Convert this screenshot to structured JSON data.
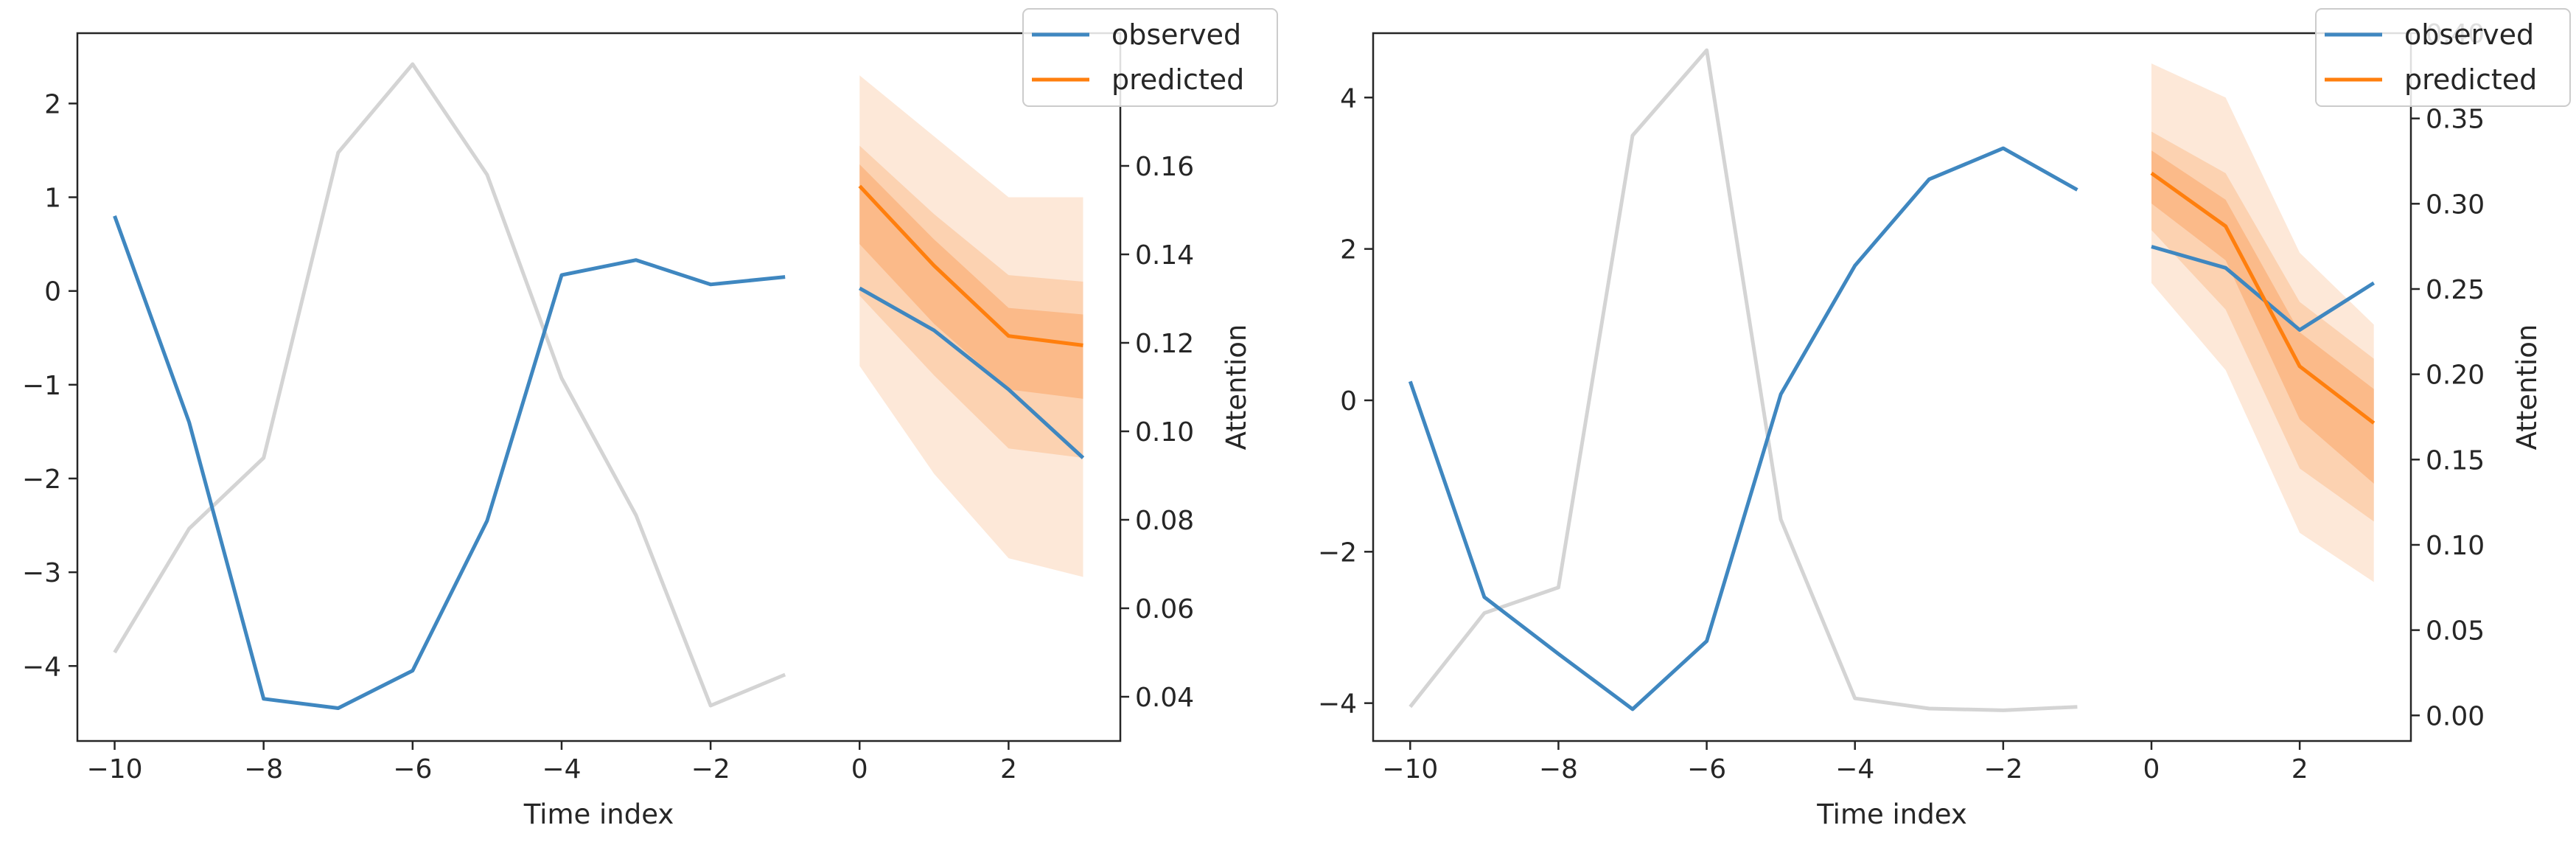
{
  "colors": {
    "observed": "#3f87c0",
    "predicted": "#ff7f0e",
    "attention": "#d4d4d4",
    "band_outer": "#fde6d4",
    "band_mid": "#fccfad",
    "band_inner": "#fbb785",
    "axis": "#262626"
  },
  "chart_data": [
    {
      "type": "line",
      "xlabel": "Time index",
      "y2label": "Attention",
      "xlim": [
        -10.5,
        3.5
      ],
      "ylim": [
        -4.8,
        2.75
      ],
      "y2lim": [
        0.03,
        0.19
      ],
      "xticks": [
        -10,
        -8,
        -6,
        -4,
        -2,
        0,
        2
      ],
      "xtick_labels": [
        "−10",
        "−8",
        "−6",
        "−4",
        "−2",
        "0",
        "2"
      ],
      "yticks": [
        2,
        1,
        0,
        -1,
        -2,
        -3,
        -4
      ],
      "ytick_labels": [
        "2",
        "1",
        "0",
        "−1",
        "−2",
        "−3",
        "−4"
      ],
      "y2ticks": [
        0.16,
        0.14,
        0.12,
        0.1,
        0.08,
        0.06,
        0.04
      ],
      "y2tick_labels": [
        "0.16",
        "0.14",
        "0.12",
        "0.10",
        "0.08",
        "0.06",
        "0.04"
      ],
      "legend": {
        "placement": "top-right",
        "observed_label": "observed",
        "predicted_label": "predicted"
      },
      "attention": {
        "x": [
          -10,
          -9,
          -8,
          -7,
          -6,
          -5,
          -4,
          -3,
          -2,
          -1
        ],
        "values": [
          0.05,
          0.078,
          0.094,
          0.163,
          0.183,
          0.158,
          0.112,
          0.081,
          0.038,
          0.045
        ]
      },
      "observed": {
        "past_x": [
          -10,
          -9,
          -8,
          -7,
          -6,
          -5,
          -4,
          -3,
          -2,
          -1
        ],
        "past_y": [
          0.8,
          -1.4,
          -4.35,
          -4.45,
          -4.05,
          -2.45,
          0.17,
          0.33,
          0.07,
          0.15
        ],
        "future_x": [
          0,
          1,
          2,
          3
        ],
        "future_y": [
          0.03,
          -0.42,
          -1.05,
          -1.78
        ]
      },
      "predicted": {
        "x": [
          0,
          1,
          2,
          3
        ],
        "median": [
          1.12,
          0.27,
          -0.48,
          -0.58
        ],
        "bands": [
          {
            "level": "outer",
            "lower": [
              -0.8,
              -1.95,
              -2.85,
              -3.05
            ],
            "upper": [
              2.3,
              1.65,
              1.0,
              1.0
            ]
          },
          {
            "level": "mid",
            "lower": [
              -0.05,
              -0.9,
              -1.68,
              -1.78
            ],
            "upper": [
              1.55,
              0.82,
              0.17,
              0.1
            ]
          },
          {
            "level": "inner",
            "lower": [
              0.5,
              -0.35,
              -1.05,
              -1.15
            ],
            "upper": [
              1.35,
              0.55,
              -0.18,
              -0.25
            ]
          }
        ]
      }
    },
    {
      "type": "line",
      "xlabel": "Time index",
      "y2label": "Attention",
      "xlim": [
        -10.5,
        3.5
      ],
      "ylim": [
        -4.5,
        4.85
      ],
      "y2lim": [
        -0.015,
        0.4
      ],
      "xticks": [
        -10,
        -8,
        -6,
        -4,
        -2,
        0,
        2
      ],
      "xtick_labels": [
        "−10",
        "−8",
        "−6",
        "−4",
        "−2",
        "0",
        "2"
      ],
      "yticks": [
        4,
        2,
        0,
        -2,
        -4
      ],
      "ytick_labels": [
        "4",
        "2",
        "0",
        "−2",
        "−4"
      ],
      "y2ticks": [
        0.4,
        0.35,
        0.3,
        0.25,
        0.2,
        0.15,
        0.1,
        0.05,
        0.0
      ],
      "y2tick_labels": [
        "0.40",
        "0.35",
        "0.30",
        "0.25",
        "0.20",
        "0.15",
        "0.10",
        "0.05",
        "0.00"
      ],
      "legend": {
        "placement": "top-right",
        "observed_label": "observed",
        "predicted_label": "predicted"
      },
      "attention": {
        "x": [
          -10,
          -9,
          -8,
          -7,
          -6,
          -5,
          -4,
          -3,
          -2,
          -1
        ],
        "values": [
          0.005,
          0.06,
          0.075,
          0.34,
          0.39,
          0.115,
          0.01,
          0.004,
          0.003,
          0.005
        ]
      },
      "observed": {
        "past_x": [
          -10,
          -9,
          -8,
          -7,
          -6,
          -5,
          -4,
          -3,
          -2,
          -1
        ],
        "past_y": [
          0.25,
          -2.6,
          -3.35,
          -4.08,
          -3.18,
          0.08,
          1.78,
          2.92,
          3.33,
          2.78
        ],
        "future_x": [
          0,
          1,
          2,
          3
        ],
        "future_y": [
          2.03,
          1.75,
          0.93,
          1.55
        ]
      },
      "predicted": {
        "x": [
          0,
          1,
          2,
          3
        ],
        "median": [
          3.0,
          2.3,
          0.45,
          -0.3
        ],
        "bands": [
          {
            "level": "outer",
            "lower": [
              1.55,
              0.4,
              -1.75,
              -2.4
            ],
            "upper": [
              4.45,
              4.0,
              1.95,
              1.0
            ]
          },
          {
            "level": "mid",
            "lower": [
              2.25,
              1.2,
              -0.9,
              -1.6
            ],
            "upper": [
              3.55,
              3.0,
              1.3,
              0.55
            ]
          },
          {
            "level": "inner",
            "lower": [
              2.6,
              1.85,
              -0.25,
              -1.1
            ],
            "upper": [
              3.3,
              2.65,
              0.9,
              0.15
            ]
          }
        ]
      }
    }
  ]
}
